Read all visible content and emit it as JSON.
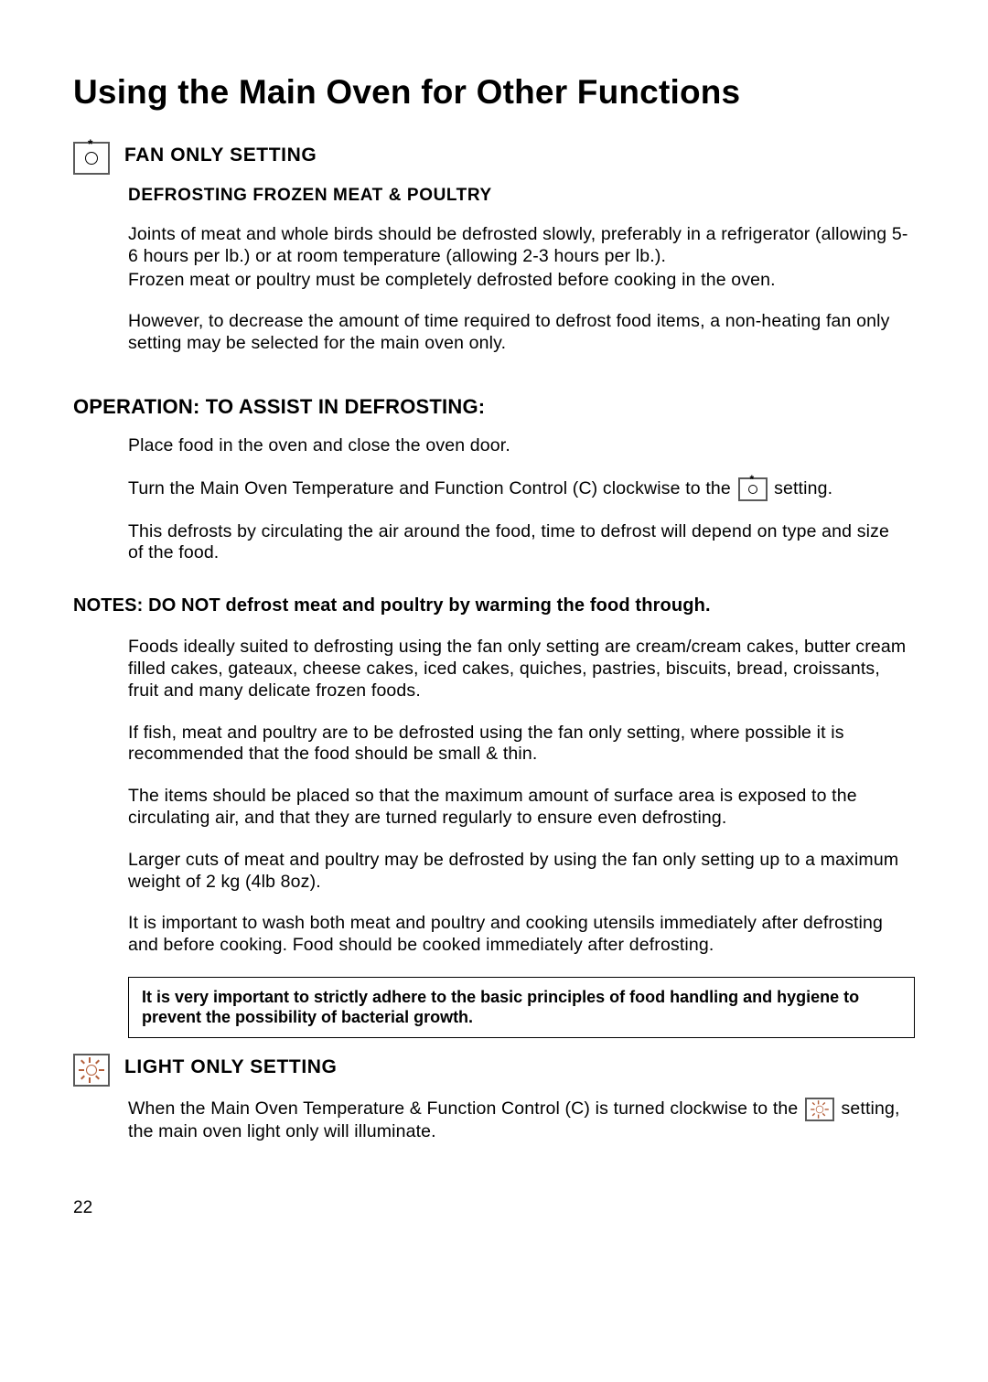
{
  "page": {
    "title": "Using the Main Oven for Other Functions",
    "number": "22"
  },
  "fan_section": {
    "heading": "FAN ONLY SETTING",
    "subheading": "DEFROSTING FROZEN MEAT & POULTRY",
    "p1": "Joints of meat and whole birds should be defrosted slowly, preferably in a refrigerator (allowing 5-6 hours per lb.) or at room temperature (allowing 2-3 hours per lb.).",
    "p2": "Frozen meat or poultry must be completely defrosted before cooking in the oven.",
    "p3": "However, to decrease the amount of time required to defrost food items, a non-heating fan only setting may be selected for the main oven only."
  },
  "operation": {
    "heading": "OPERATION: TO ASSIST IN DEFROSTING:",
    "p1": "Place food in the oven and close the oven door.",
    "p2a": "Turn the Main Oven Temperature and Function Control (C) clockwise to the ",
    "p2b": " setting.",
    "p3": "This defrosts by circulating the air around the food, time to defrost will depend on type and size of the food."
  },
  "notes": {
    "heading": "NOTES: DO NOT defrost meat and poultry by warming the food through.",
    "p1": "Foods ideally suited to defrosting using the fan only setting are cream/cream cakes, butter cream filled cakes, gateaux, cheese cakes, iced cakes, quiches, pastries, biscuits, bread, croissants, fruit and many delicate frozen foods.",
    "p2": "If fish, meat and poultry are to be defrosted using the fan only setting, where possible it is recommended that the food should be small & thin.",
    "p3": "The items should be placed so that the maximum amount of surface area is exposed to the circulating air, and that they are turned regularly to ensure even defrosting.",
    "p4": "Larger cuts of meat and poultry may be defrosted by using the fan only setting up to a maximum weight of 2 kg (4lb 8oz).",
    "p5": "It is important to wash both meat and poultry and cooking utensils immediately after defrosting and before cooking. Food should be cooked immediately after defrosting.",
    "callout": "It is very important to strictly adhere to the basic principles of food handling and hygiene to prevent the possibility of bacterial growth."
  },
  "light_section": {
    "heading": "LIGHT ONLY SETTING",
    "p1a": "When the Main Oven Temperature & Function Control (C) is turned clockwise to the ",
    "p1b": " setting, the main oven light only will illuminate."
  }
}
